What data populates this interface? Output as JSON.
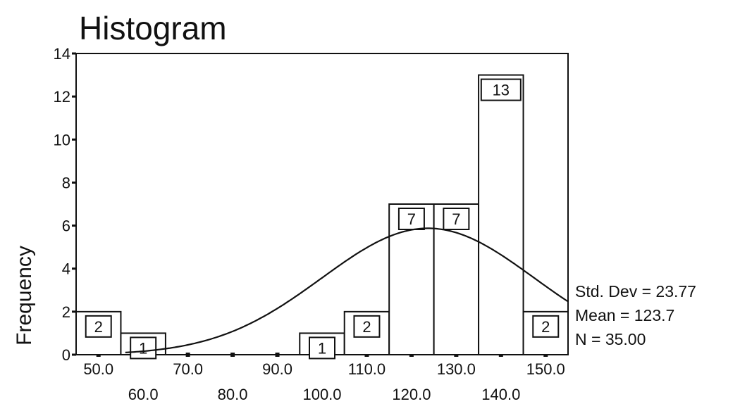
{
  "chart_data": {
    "type": "bar",
    "title": "Histogram",
    "xlabel": "",
    "ylabel": "Frequency",
    "bins": [
      {
        "center": 50.0,
        "value": 2
      },
      {
        "center": 60.0,
        "value": 1
      },
      {
        "center": 100.0,
        "value": 1
      },
      {
        "center": 110.0,
        "value": 2
      },
      {
        "center": 120.0,
        "value": 7
      },
      {
        "center": 130.0,
        "value": 7
      },
      {
        "center": 140.0,
        "value": 13
      },
      {
        "center": 150.0,
        "value": 2
      }
    ],
    "bin_width": 10,
    "xlim": [
      45,
      155
    ],
    "ylim": [
      0,
      14
    ],
    "xticks": [
      "50.0",
      "60.0",
      "70.0",
      "80.0",
      "90.0",
      "100.0",
      "110.0",
      "120.0",
      "130.0",
      "140.0",
      "150.0"
    ],
    "yticks": [
      "0",
      "2",
      "4",
      "6",
      "8",
      "10",
      "12",
      "14"
    ],
    "normal_curve": {
      "mean": 123.7,
      "std": 23.77,
      "n": 35
    },
    "stats": [
      "Std. Dev = 23.77",
      "Mean = 123.7",
      "N = 35.00"
    ],
    "colors": {
      "bar_fill": "#ffffff",
      "stroke": "#111111"
    }
  }
}
